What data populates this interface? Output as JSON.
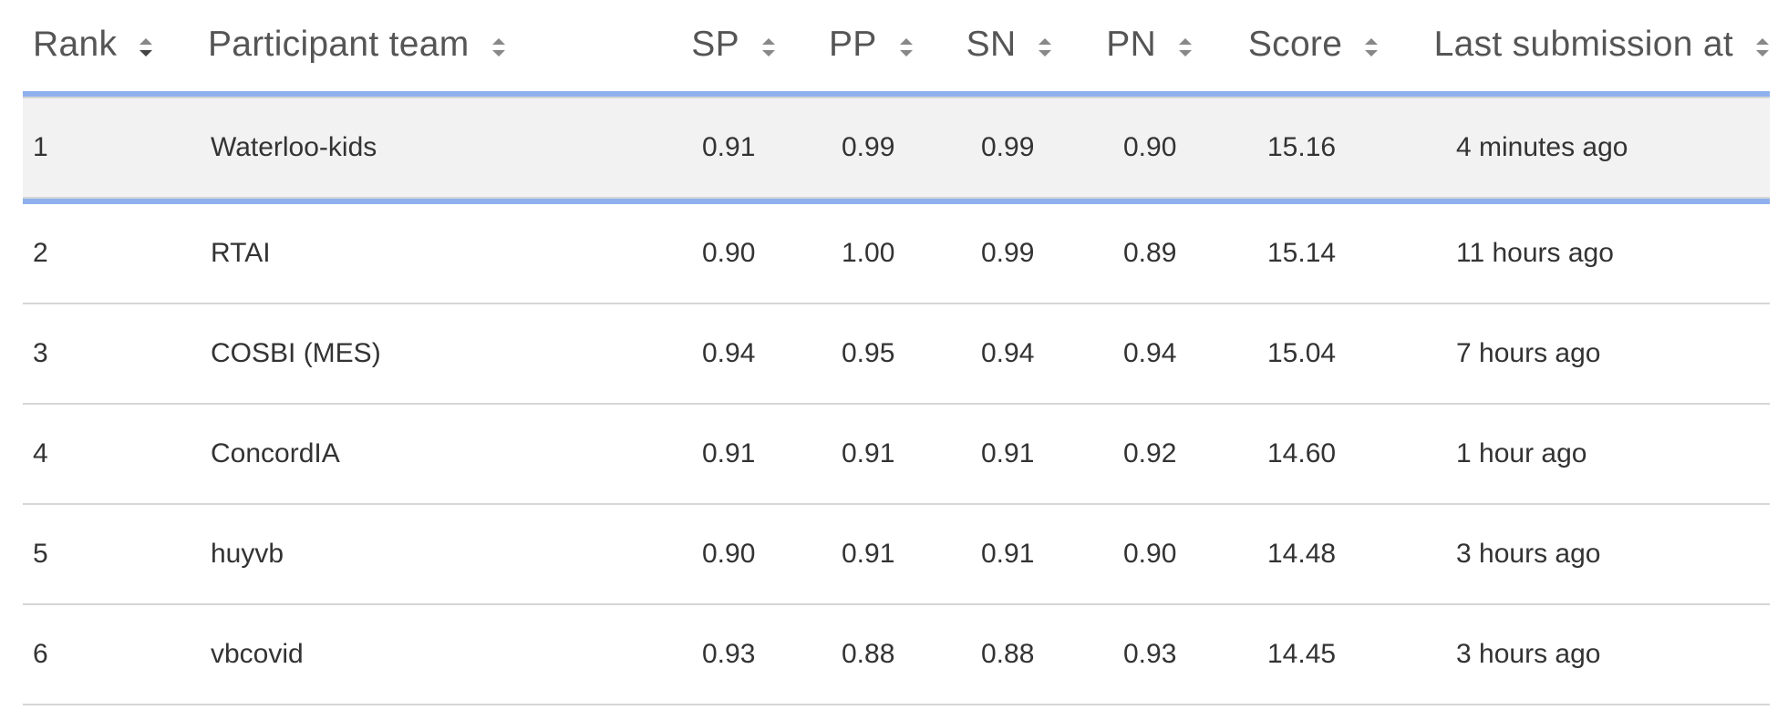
{
  "leaderboard": {
    "columns": [
      {
        "key": "rank",
        "label": "Rank"
      },
      {
        "key": "team",
        "label": "Participant team"
      },
      {
        "key": "sp",
        "label": "SP"
      },
      {
        "key": "pp",
        "label": "PP"
      },
      {
        "key": "sn",
        "label": "SN"
      },
      {
        "key": "pn",
        "label": "PN"
      },
      {
        "key": "score",
        "label": "Score"
      },
      {
        "key": "last",
        "label": "Last submission at"
      }
    ],
    "rows": [
      {
        "rank": "1",
        "team": "Waterloo-kids",
        "sp": "0.91",
        "pp": "0.99",
        "sn": "0.99",
        "pn": "0.90",
        "score": "15.16",
        "last": "4 minutes ago"
      },
      {
        "rank": "2",
        "team": "RTAI",
        "sp": "0.90",
        "pp": "1.00",
        "sn": "0.99",
        "pn": "0.89",
        "score": "15.14",
        "last": "11 hours ago"
      },
      {
        "rank": "3",
        "team": "COSBI (MES)",
        "sp": "0.94",
        "pp": "0.95",
        "sn": "0.94",
        "pn": "0.94",
        "score": "15.04",
        "last": "7 hours ago"
      },
      {
        "rank": "4",
        "team": "ConcordIA",
        "sp": "0.91",
        "pp": "0.91",
        "sn": "0.91",
        "pn": "0.92",
        "score": "14.60",
        "last": "1 hour ago"
      },
      {
        "rank": "5",
        "team": "huyvb",
        "sp": "0.90",
        "pp": "0.91",
        "sn": "0.91",
        "pn": "0.90",
        "score": "14.48",
        "last": "3 hours ago"
      },
      {
        "rank": "6",
        "team": "vbcovid",
        "sp": "0.93",
        "pp": "0.88",
        "sn": "0.88",
        "pn": "0.93",
        "score": "14.45",
        "last": "3 hours ago"
      }
    ],
    "colors": {
      "accent_rule": "#8fb0ec",
      "highlight_row": "#f2f2f2",
      "row_border": "#d6d6d6"
    },
    "icons": {
      "sort": "sort-up-down-icon"
    }
  }
}
